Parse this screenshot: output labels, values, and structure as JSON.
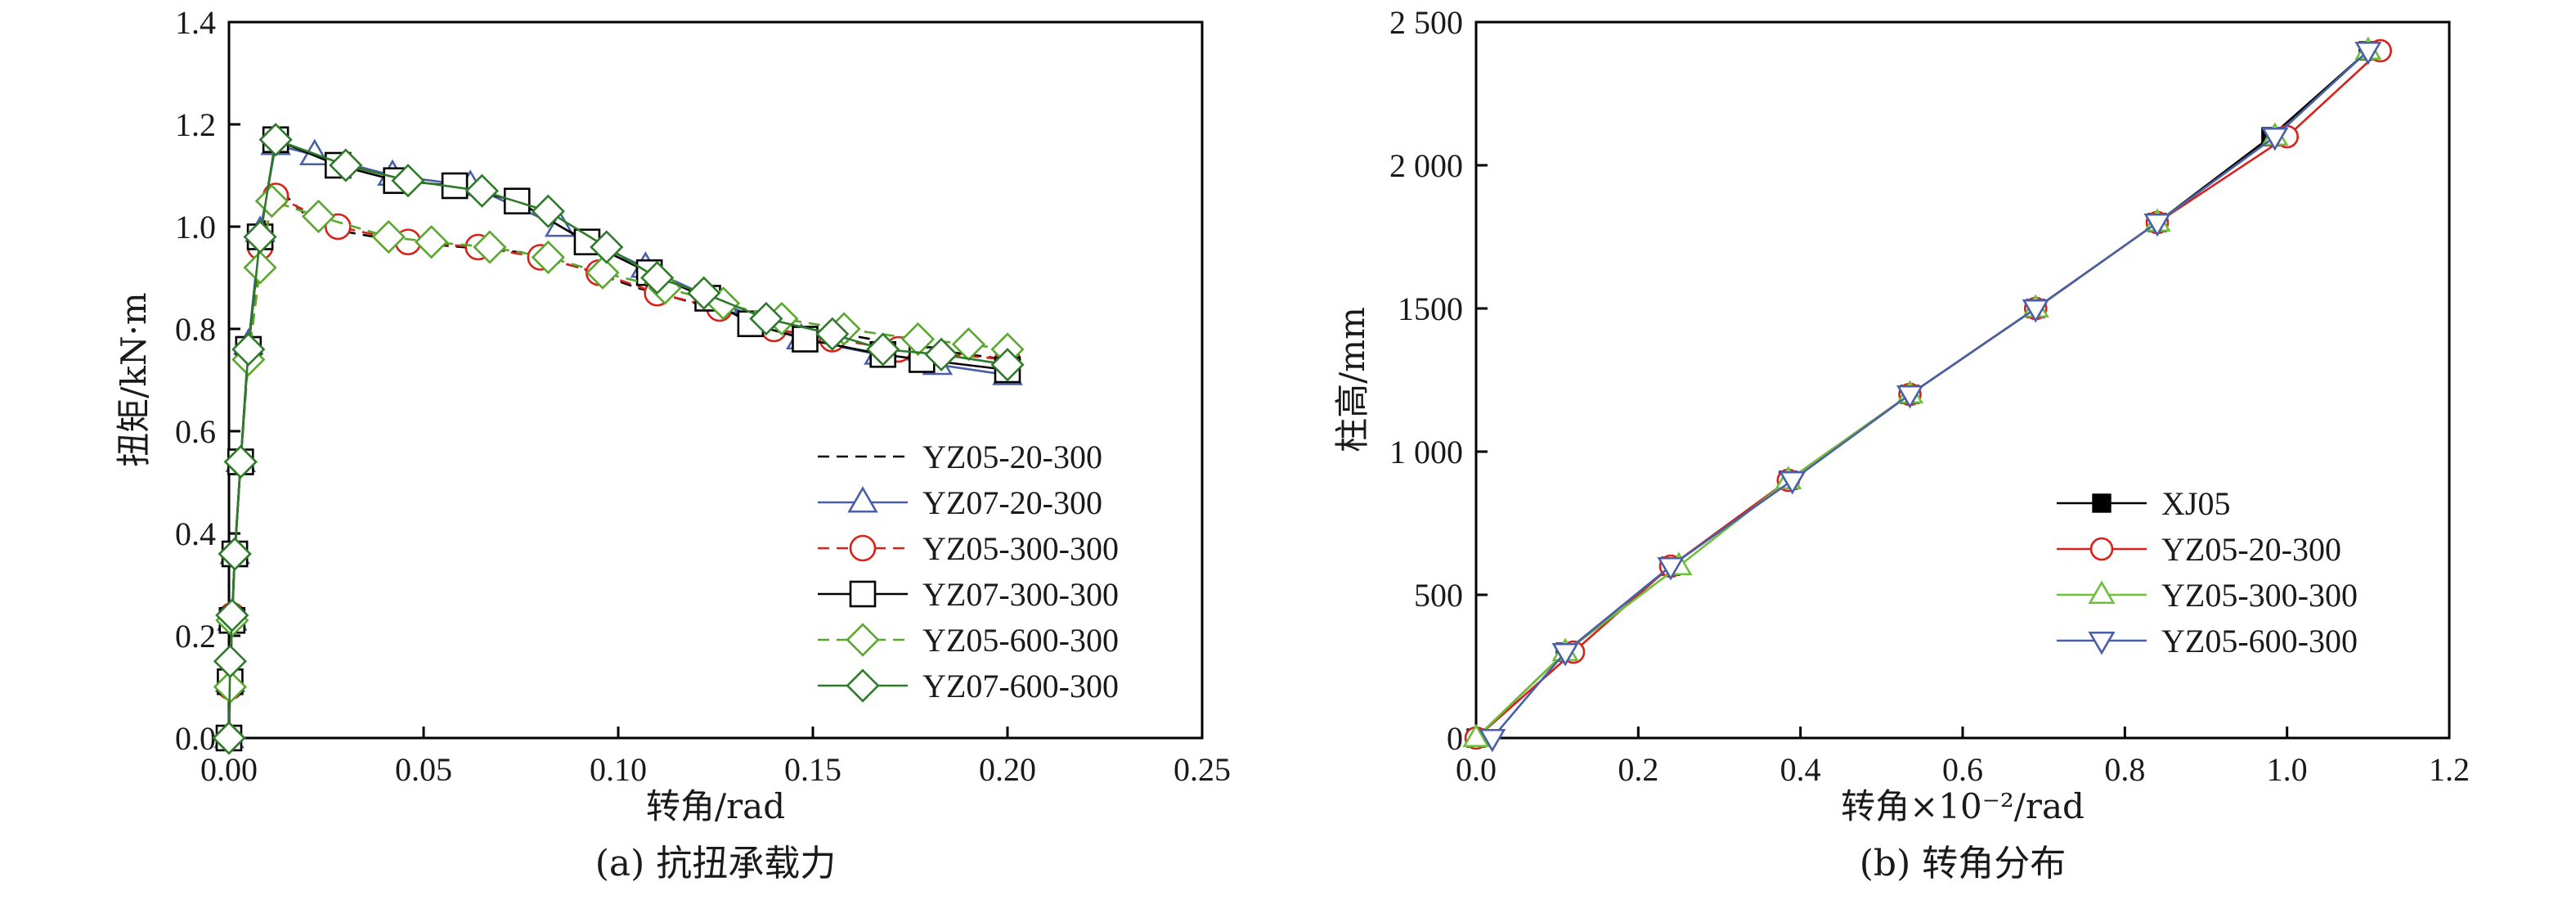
{
  "chart_data": [
    {
      "type": "line",
      "caption": "(a) 抗扭承载力",
      "xlabel": "转角/rad",
      "ylabel": "扭矩/kN·m",
      "xlim": [
        0,
        0.25
      ],
      "ylim": [
        0,
        1.4
      ],
      "xticks": [
        "0.00",
        "0.05",
        "0.10",
        "0.15",
        "0.20",
        "0.25"
      ],
      "yticks": [
        "0.0",
        "0.2",
        "0.4",
        "0.6",
        "0.8",
        "1.0",
        "1.2",
        "1.4"
      ],
      "grid": false,
      "legend_position": "bottom-right",
      "series": [
        {
          "name": "YZ05-20-300",
          "color": "#000000",
          "line": "dashed",
          "marker": "none",
          "x": [
            0,
            0.0003,
            0.0008,
            0.0015,
            0.003,
            0.005,
            0.008,
            0.012,
            0.02,
            0.03,
            0.045,
            0.06,
            0.075,
            0.09,
            0.105,
            0.12,
            0.135,
            0.15,
            0.165,
            0.18,
            0.2
          ],
          "y": [
            0,
            0.1,
            0.24,
            0.36,
            0.54,
            0.76,
            0.98,
            1.08,
            1.02,
            0.99,
            0.97,
            0.96,
            0.95,
            0.92,
            0.88,
            0.85,
            0.82,
            0.8,
            0.78,
            0.76,
            0.74
          ]
        },
        {
          "name": "YZ07-20-300",
          "color": "#4a5fa8",
          "line": "solid",
          "marker": "triangle-up",
          "x": [
            0,
            0.0003,
            0.0008,
            0.0015,
            0.003,
            0.005,
            0.008,
            0.012,
            0.022,
            0.042,
            0.062,
            0.085,
            0.107,
            0.127,
            0.147,
            0.167,
            0.182,
            0.2
          ],
          "y": [
            0,
            0.11,
            0.23,
            0.36,
            0.54,
            0.77,
            0.99,
            1.16,
            1.14,
            1.1,
            1.08,
            1.0,
            0.92,
            0.85,
            0.78,
            0.75,
            0.73,
            0.71
          ]
        },
        {
          "name": "YZ05-300-300",
          "color": "#d6221b",
          "line": "dashed",
          "marker": "circle",
          "x": [
            0,
            0.0003,
            0.0008,
            0.0015,
            0.003,
            0.005,
            0.008,
            0.012,
            0.028,
            0.046,
            0.064,
            0.08,
            0.095,
            0.11,
            0.126,
            0.14,
            0.155,
            0.172,
            0.2
          ],
          "y": [
            0,
            0.1,
            0.24,
            0.36,
            0.54,
            0.76,
            0.96,
            1.06,
            1.0,
            0.97,
            0.96,
            0.94,
            0.91,
            0.87,
            0.84,
            0.8,
            0.78,
            0.76,
            0.74
          ]
        },
        {
          "name": "YZ07-300-300",
          "color": "#000000",
          "line": "solid",
          "marker": "square",
          "x": [
            0,
            0.0003,
            0.0008,
            0.0015,
            0.003,
            0.005,
            0.008,
            0.012,
            0.028,
            0.043,
            0.058,
            0.074,
            0.092,
            0.108,
            0.123,
            0.134,
            0.148,
            0.168,
            0.178,
            0.2
          ],
          "y": [
            0,
            0.11,
            0.23,
            0.36,
            0.54,
            0.76,
            0.98,
            1.17,
            1.12,
            1.09,
            1.08,
            1.05,
            0.97,
            0.91,
            0.86,
            0.81,
            0.78,
            0.75,
            0.74,
            0.72
          ]
        },
        {
          "name": "YZ05-600-300",
          "color": "#5aa62e",
          "line": "dashed",
          "marker": "diamond",
          "x": [
            0,
            0.0003,
            0.0008,
            0.0015,
            0.003,
            0.005,
            0.008,
            0.011,
            0.023,
            0.041,
            0.052,
            0.067,
            0.082,
            0.096,
            0.112,
            0.127,
            0.142,
            0.158,
            0.177,
            0.19,
            0.2
          ],
          "y": [
            0,
            0.1,
            0.23,
            0.36,
            0.54,
            0.74,
            0.92,
            1.05,
            1.02,
            0.98,
            0.97,
            0.96,
            0.94,
            0.91,
            0.88,
            0.85,
            0.82,
            0.8,
            0.78,
            0.77,
            0.76
          ]
        },
        {
          "name": "YZ07-600-300",
          "color": "#2f7a2a",
          "line": "solid",
          "marker": "diamond",
          "x": [
            0,
            0.0003,
            0.0008,
            0.0015,
            0.003,
            0.005,
            0.008,
            0.012,
            0.03,
            0.046,
            0.065,
            0.082,
            0.097,
            0.11,
            0.122,
            0.138,
            0.155,
            0.168,
            0.183,
            0.2
          ],
          "y": [
            0,
            0.15,
            0.24,
            0.36,
            0.54,
            0.76,
            0.98,
            1.17,
            1.12,
            1.09,
            1.07,
            1.03,
            0.96,
            0.9,
            0.87,
            0.82,
            0.79,
            0.76,
            0.75,
            0.73
          ]
        }
      ]
    },
    {
      "type": "line",
      "caption": "(b) 转角分布",
      "xlabel": "转角×10⁻²/rad",
      "ylabel": "柱高/mm",
      "xlim": [
        0,
        1.2
      ],
      "ylim": [
        0,
        2500
      ],
      "xticks": [
        "0.0",
        "0.2",
        "0.4",
        "0.6",
        "0.8",
        "1.0",
        "1.2"
      ],
      "yticks": [
        "0",
        "500",
        "1 000",
        "1500",
        "2 000",
        "2 500"
      ],
      "grid": false,
      "legend_position": "bottom-right",
      "series": [
        {
          "name": "XJ05",
          "color": "#000000",
          "line": "solid",
          "marker": "square-filled",
          "x": [
            0.0,
            0.11,
            0.24,
            0.385,
            0.535,
            0.69,
            0.84,
            0.98,
            1.1
          ],
          "y": [
            0,
            300,
            600,
            900,
            1200,
            1500,
            1800,
            2100,
            2400
          ]
        },
        {
          "name": "YZ05-20-300",
          "color": "#d6221b",
          "line": "solid",
          "marker": "circle",
          "x": [
            0.0,
            0.12,
            0.24,
            0.385,
            0.535,
            0.69,
            0.84,
            1.0,
            1.115
          ],
          "y": [
            0,
            300,
            600,
            900,
            1200,
            1500,
            1800,
            2100,
            2400
          ]
        },
        {
          "name": "YZ05-300-300",
          "color": "#6fbf3a",
          "line": "solid",
          "marker": "triangle-up",
          "x": [
            0.0,
            0.11,
            0.25,
            0.385,
            0.535,
            0.69,
            0.84,
            0.985,
            1.1
          ],
          "y": [
            0,
            300,
            600,
            900,
            1200,
            1500,
            1800,
            2100,
            2400
          ]
        },
        {
          "name": "YZ05-600-300",
          "color": "#4a5fa8",
          "line": "solid",
          "marker": "triangle-down",
          "x": [
            0.02,
            0.11,
            0.24,
            0.39,
            0.535,
            0.69,
            0.84,
            0.985,
            1.1
          ],
          "y": [
            0,
            300,
            600,
            900,
            1200,
            1500,
            1800,
            2100,
            2400
          ]
        }
      ]
    }
  ]
}
